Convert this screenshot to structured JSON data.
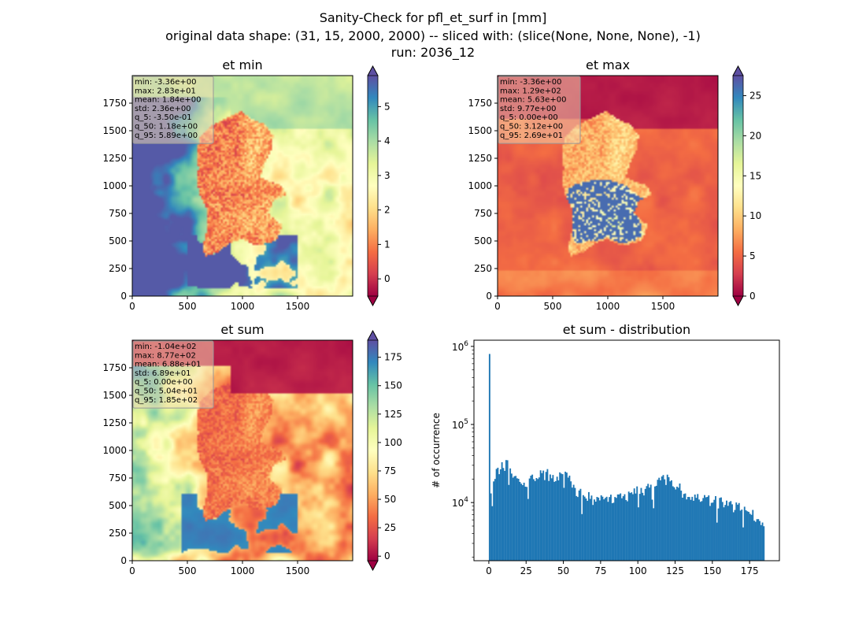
{
  "suptitle": [
    "Sanity-Check for pfl_et_surf in [mm]",
    "original data shape: (31, 15, 2000, 2000) -- sliced with: (slice(None, None, None), -1)",
    "run: 2036_12"
  ],
  "colors": {
    "spectral_stops": [
      "#9e0142",
      "#d53e4f",
      "#f46d43",
      "#fdae61",
      "#fee08b",
      "#ffffbf",
      "#e6f598",
      "#abdda4",
      "#66c2a5",
      "#3288bd",
      "#5e4fa2"
    ],
    "hist_bar": "#1f77b4",
    "stats_box_fill": "#f5deb3"
  },
  "chart_data": [
    {
      "type": "heatmap",
      "title": "et min",
      "x_ticks": [
        "0",
        "500",
        "1000",
        "1500"
      ],
      "y_ticks": [
        "0",
        "250",
        "500",
        "750",
        "1000",
        "1250",
        "1500",
        "1750"
      ],
      "xlim": [
        0,
        2000
      ],
      "ylim": [
        0,
        2000
      ],
      "colormap": "Spectral",
      "colorbar": {
        "min": -0.5,
        "max": 5.9,
        "ticks": [
          "0",
          "1",
          "2",
          "3",
          "4",
          "5"
        ],
        "extend": "both"
      },
      "stats": [
        "min: -3.36e+00",
        "max: 2.83e+01",
        "mean: 1.84e+00",
        "std: 2.36e+00",
        "q_5: -3.50e-01",
        "q_50: 1.18e+00",
        "q_95: 5.89e+00"
      ]
    },
    {
      "type": "heatmap",
      "title": "et max",
      "x_ticks": [
        "0",
        "500",
        "1000",
        "1500"
      ],
      "y_ticks": [
        "0",
        "250",
        "500",
        "750",
        "1000",
        "1250",
        "1500",
        "1750"
      ],
      "xlim": [
        0,
        2000
      ],
      "ylim": [
        0,
        2000
      ],
      "colormap": "Spectral",
      "colorbar": {
        "min": 0,
        "max": 27.5,
        "ticks": [
          "0",
          "5",
          "10",
          "15",
          "20",
          "25"
        ],
        "extend": "both"
      },
      "stats": [
        "min: -3.36e+00",
        "max: 1.29e+02",
        "mean: 5.63e+00",
        "std: 9.77e+00",
        "q_5: 0.00e+00",
        "q_50: 3.12e+00",
        "q_95: 2.69e+01"
      ]
    },
    {
      "type": "heatmap",
      "title": "et sum",
      "x_ticks": [
        "0",
        "500",
        "1000",
        "1500"
      ],
      "y_ticks": [
        "0",
        "250",
        "500",
        "750",
        "1000",
        "1250",
        "1500",
        "1750"
      ],
      "xlim": [
        0,
        2000
      ],
      "ylim": [
        0,
        2000
      ],
      "colormap": "Spectral",
      "colorbar": {
        "min": -4,
        "max": 190,
        "ticks": [
          "0",
          "25",
          "50",
          "75",
          "100",
          "125",
          "150",
          "175"
        ],
        "extend": "both"
      },
      "stats": [
        "min: -1.04e+02",
        "max: 8.77e+02",
        "mean: 6.88e+01",
        "std: 6.89e+01",
        "q_5: 0.00e+00",
        "q_50: 5.04e+01",
        "q_95: 1.85e+02"
      ]
    },
    {
      "type": "bar",
      "title": "et sum - distribution",
      "ylabel": "# of occurrence",
      "yscale": "log",
      "xlim": [
        -10,
        195
      ],
      "ylim": [
        1800,
        1200000
      ],
      "x_ticks": [
        "0",
        "25",
        "50",
        "75",
        "100",
        "125",
        "150",
        "175"
      ],
      "y_ticks": [
        "10^4",
        "10^5",
        "10^6"
      ],
      "bin_width": 0.925,
      "spike": {
        "x": 0,
        "value": 800000
      },
      "profile": [
        [
          0.5,
          5200
        ],
        [
          1.4,
          12000
        ],
        [
          3,
          22000
        ],
        [
          6,
          24000
        ],
        [
          10,
          30000
        ],
        [
          13,
          32000
        ],
        [
          18,
          22000
        ],
        [
          22,
          17000
        ],
        [
          26,
          19000
        ],
        [
          30,
          21000
        ],
        [
          35,
          22000
        ],
        [
          40,
          23000
        ],
        [
          45,
          22000
        ],
        [
          50,
          25000
        ],
        [
          53,
          23000
        ],
        [
          57,
          16000
        ],
        [
          62,
          12500
        ],
        [
          68,
          11500
        ],
        [
          75,
          10500
        ],
        [
          80,
          11000
        ],
        [
          85,
          11000
        ],
        [
          90,
          11500
        ],
        [
          95,
          12500
        ],
        [
          100,
          14000
        ],
        [
          105,
          15000
        ],
        [
          110,
          17000
        ],
        [
          115,
          19000
        ],
        [
          120,
          19500
        ],
        [
          125,
          17000
        ],
        [
          130,
          14000
        ],
        [
          135,
          12500
        ],
        [
          140,
          11500
        ],
        [
          145,
          11000
        ],
        [
          150,
          10500
        ],
        [
          155,
          10000
        ],
        [
          160,
          9500
        ],
        [
          165,
          9000
        ],
        [
          170,
          8500
        ],
        [
          175,
          7500
        ],
        [
          180,
          6000
        ],
        [
          183,
          5200
        ],
        [
          184.5,
          4800
        ]
      ]
    }
  ]
}
